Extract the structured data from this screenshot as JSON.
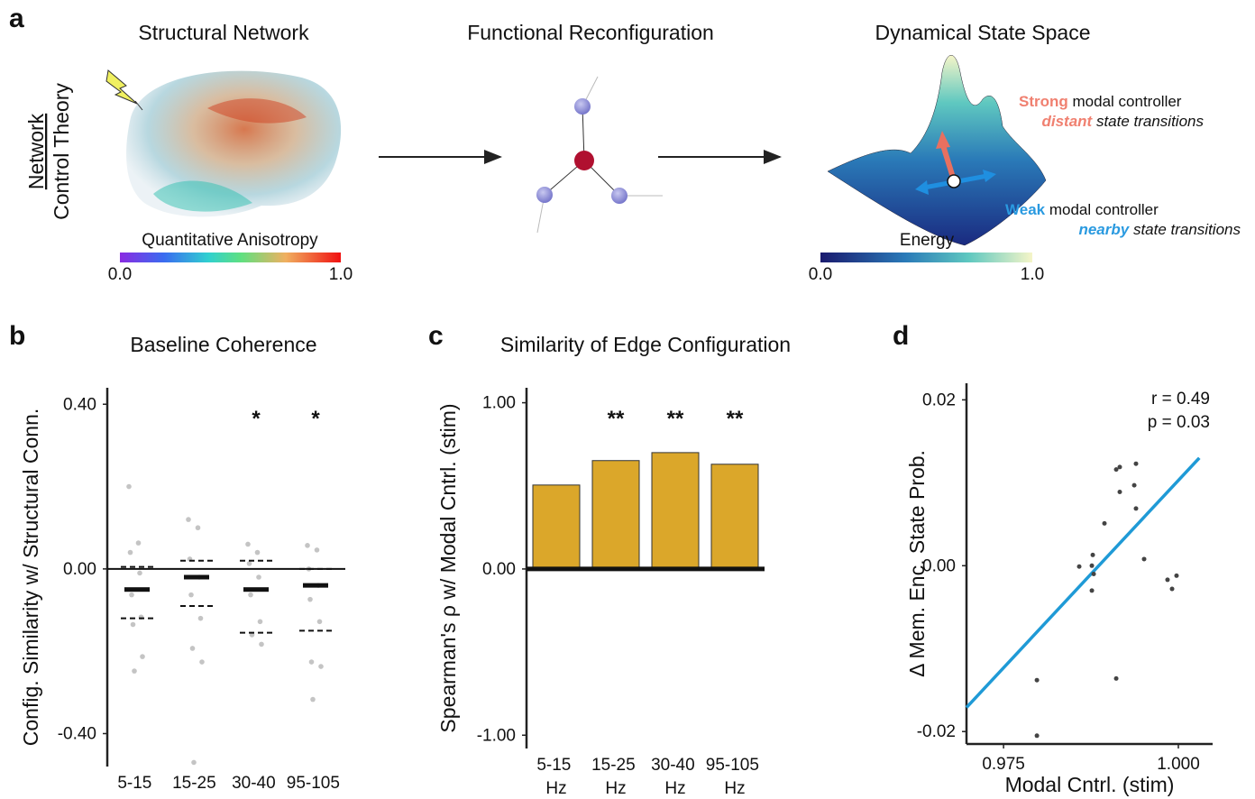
{
  "diagram": {
    "label": "a",
    "side_label": {
      "underlined": "Network",
      "text": "Control Theory"
    },
    "titles": [
      "Structural Network",
      "Functional Reconfiguration",
      "Dynamical State Space"
    ],
    "colorbar_qa": {
      "title": "Quantitative Anisotropy",
      "min": "0.0",
      "max": "1.0"
    },
    "colorbar_energy": {
      "title": "Energy",
      "min": "0.0",
      "max": "1.0"
    },
    "annotations": [
      {
        "emph": "Strong",
        "text": "modal controller"
      },
      {
        "emph": "distant",
        "text": "state transitions"
      },
      {
        "emph": "Weak",
        "text": "modal controller"
      },
      {
        "emph": "nearby",
        "text": "state transitions"
      }
    ]
  },
  "chart_data": [
    {
      "type": "strip",
      "label": "b",
      "title": "Baseline Coherence",
      "ylabel": "Config. Similarity w/ Structural Conn.",
      "categories": [
        "5-15 Hz",
        "15-25 Hz",
        "30-40 Hz",
        "95-105 Hz"
      ],
      "means": [
        -0.05,
        -0.02,
        -0.05,
        -0.04
      ],
      "upper": [
        0.005,
        0.02,
        0.02,
        0.0
      ],
      "lower": [
        -0.12,
        -0.09,
        -0.155,
        -0.15
      ],
      "points": [
        [
          0.2,
          0.063,
          0.04,
          -0.01,
          -0.063,
          -0.117,
          -0.135,
          -0.213,
          -0.248
        ],
        [
          0.12,
          0.1,
          0.024,
          -0.02,
          -0.063,
          -0.12,
          -0.193,
          -0.226,
          -0.47
        ],
        [
          0.06,
          0.04,
          0.013,
          -0.02,
          -0.063,
          -0.128,
          -0.16,
          -0.183
        ],
        [
          0.057,
          0.046,
          0.0,
          -0.04,
          -0.074,
          -0.128,
          -0.226,
          -0.237,
          -0.317
        ]
      ],
      "significance": [
        null,
        null,
        "*",
        "*"
      ],
      "ylim": [
        -0.48,
        0.44
      ],
      "yticks": [
        {
          "value": -0.4,
          "label": "-0.40"
        },
        {
          "value": 0,
          "label": "0.00"
        },
        {
          "value": 0.4,
          "label": "0.40"
        }
      ]
    },
    {
      "type": "bar",
      "label": "c",
      "title": "Similarity of Edge Configuration",
      "ylabel": "Spearman's ρ w/ Modal Cntrl. (stim)",
      "categories": [
        "5-15 Hz",
        "15-25 Hz",
        "30-40 Hz",
        "95-105 Hz"
      ],
      "values": [
        0.505,
        0.652,
        0.7,
        0.63
      ],
      "significance": [
        null,
        "**",
        "**",
        "**"
      ],
      "color": "#dba72a",
      "ylim": [
        -1.08,
        1.09
      ],
      "yticks": [
        {
          "value": -1,
          "label": "-1.00"
        },
        {
          "value": 0,
          "label": "0.00"
        },
        {
          "value": 1,
          "label": "1.00"
        }
      ]
    },
    {
      "type": "scatter",
      "label": "d",
      "xlabel": "Modal Cntrl. (stim)",
      "ylabel": "Δ Mem. Enc. State Prob.",
      "x": [
        0.97977,
        0.97977,
        0.98582,
        0.98763,
        0.98789,
        0.98763,
        0.98776,
        0.98943,
        0.99111,
        0.99162,
        0.99162,
        0.99394,
        0.99369,
        0.99394,
        0.9951,
        0.99845,
        0.99974,
        0.9991,
        0.99111
      ],
      "y": [
        -0.0138,
        -0.0205,
        -0.0001,
        0.0,
        -0.001,
        -0.003,
        0.0013,
        0.0051,
        0.0116,
        0.0119,
        0.0089,
        0.0123,
        0.0097,
        0.0069,
        0.0008,
        -0.0017,
        -0.0012,
        -0.0028,
        -0.0136
      ],
      "fit": {
        "x": [
          0.9697,
          1.003
        ],
        "y": [
          -0.0171,
          0.013
        ]
      },
      "color": "#1f9ad6",
      "stats": [
        "r = 0.49",
        "p = 0.03"
      ],
      "xlim": [
        0.9697,
        1.0049
      ],
      "ylim": [
        -0.0215,
        0.022
      ],
      "xticks": [
        0.975,
        {
          "value": 1,
          "label": "1.000"
        }
      ],
      "yticks": [
        {
          "value": -0.02,
          "label": "-0.02"
        },
        {
          "value": 0,
          "label": "0.00"
        },
        {
          "value": 0.02,
          "label": "0.02"
        }
      ]
    }
  ]
}
